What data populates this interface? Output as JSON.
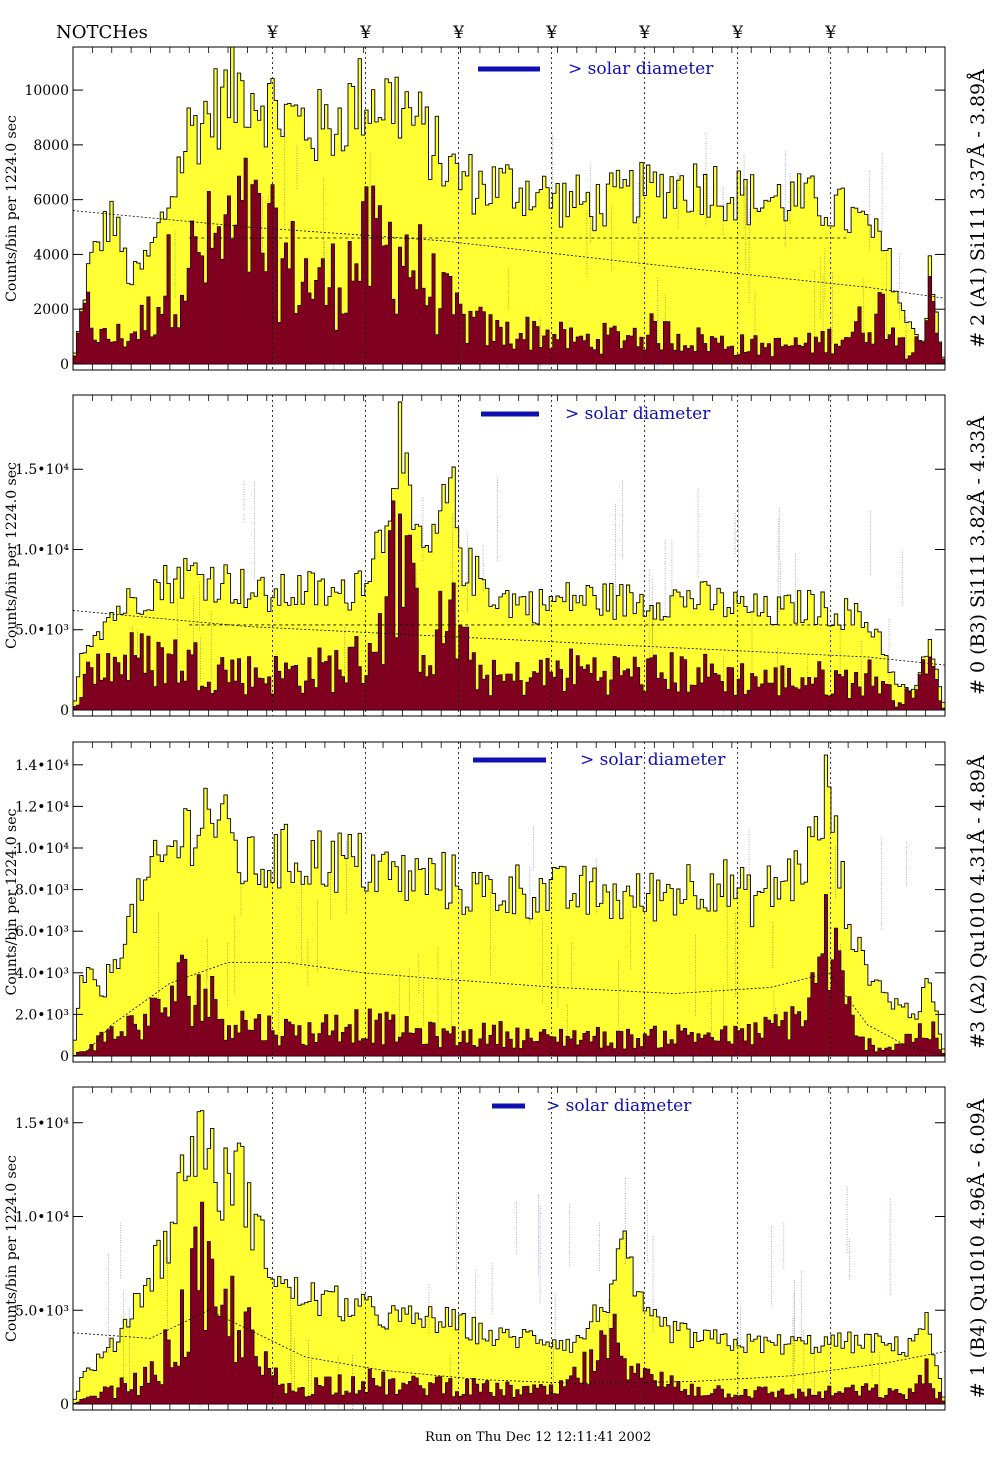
{
  "header": {
    "notches_label": "NOTCHes",
    "notch_symbol": "¥"
  },
  "notch_positions": [
    1.13,
    1.61,
    2.09,
    2.57,
    3.05,
    3.53,
    4.01
  ],
  "footer_text": "Run on Thu Dec 12 12:11:41 2002",
  "colors": {
    "total_fill": "#ffff33",
    "sub_fill": "#800020",
    "legend": "#1010b0",
    "line_label_blue": "#1010b0",
    "line_label_purple": "#800080"
  },
  "chart_data": [
    {
      "type": "area",
      "panel_label": "# 2 (A1) Si111  3.37Å - 3.89Å",
      "ylabel": "Counts/bin per   1224.0 sec",
      "legend_text": "> solar diameter",
      "xlim": [
        0.1,
        4.6
      ],
      "ylim": [
        0,
        11500
      ],
      "yticks": [
        0,
        2000,
        4000,
        6000,
        8000,
        10000
      ],
      "ytick_labels": [
        "0",
        "2000",
        "4000",
        "6000",
        "8000",
        "10000"
      ],
      "baseline_level": 4600,
      "smooth_curve": [
        [
          0.1,
          5600
        ],
        [
          1.0,
          5000
        ],
        [
          2.0,
          4500
        ],
        [
          3.0,
          3700
        ],
        [
          4.2,
          2800
        ],
        [
          4.6,
          2400
        ]
      ],
      "total_profile": [
        [
          0.1,
          0
        ],
        [
          0.18,
          3500
        ],
        [
          0.3,
          5500
        ],
        [
          0.4,
          3000
        ],
        [
          0.5,
          4000
        ],
        [
          0.6,
          6000
        ],
        [
          0.7,
          8500
        ],
        [
          0.85,
          9500
        ],
        [
          1.0,
          10200
        ],
        [
          1.2,
          9000
        ],
        [
          1.4,
          8500
        ],
        [
          1.6,
          9800
        ],
        [
          1.8,
          9500
        ],
        [
          1.95,
          8000
        ],
        [
          2.05,
          7000
        ],
        [
          2.2,
          6500
        ],
        [
          2.4,
          6500
        ],
        [
          2.6,
          6000
        ],
        [
          2.8,
          5800
        ],
        [
          3.0,
          6200
        ],
        [
          3.2,
          6500
        ],
        [
          3.4,
          6500
        ],
        [
          3.6,
          6000
        ],
        [
          3.8,
          6000
        ],
        [
          4.0,
          5800
        ],
        [
          4.2,
          5000
        ],
        [
          4.3,
          4000
        ],
        [
          4.4,
          1500
        ],
        [
          4.5,
          800
        ],
        [
          4.52,
          4200
        ],
        [
          4.58,
          500
        ],
        [
          4.6,
          0
        ]
      ],
      "sub_profile": [
        [
          0.1,
          0
        ],
        [
          0.15,
          2500
        ],
        [
          0.25,
          1000
        ],
        [
          0.4,
          1200
        ],
        [
          0.5,
          2000
        ],
        [
          0.6,
          3500
        ],
        [
          0.8,
          4500
        ],
        [
          1.0,
          5500
        ],
        [
          1.2,
          4000
        ],
        [
          1.4,
          3000
        ],
        [
          1.6,
          4500
        ],
        [
          1.8,
          4800
        ],
        [
          1.95,
          3000
        ],
        [
          2.1,
          1800
        ],
        [
          2.3,
          1200
        ],
        [
          2.5,
          1300
        ],
        [
          2.7,
          900
        ],
        [
          2.9,
          1100
        ],
        [
          3.1,
          1300
        ],
        [
          3.3,
          1000
        ],
        [
          3.5,
          800
        ],
        [
          3.7,
          700
        ],
        [
          3.9,
          800
        ],
        [
          4.1,
          1200
        ],
        [
          4.3,
          2300
        ],
        [
          4.4,
          500
        ],
        [
          4.52,
          2500
        ],
        [
          4.6,
          0
        ]
      ]
    },
    {
      "type": "area",
      "panel_label": "# 0 (B3) Si111  3.82Å - 4.33Å",
      "ylabel": "Counts/bin per   1224.0 sec",
      "legend_text": "> solar diameter",
      "xlim": [
        0.1,
        4.6
      ],
      "ylim": [
        0,
        19500
      ],
      "yticks": [
        0,
        5000,
        10000,
        15000
      ],
      "ytick_labels": [
        "0",
        "5.0•10³",
        "1.0•10⁴",
        "1.5•10⁴"
      ],
      "baseline_level": 5300,
      "smooth_curve": [
        [
          0.1,
          6200
        ],
        [
          1.0,
          5200
        ],
        [
          2.0,
          4600
        ],
        [
          3.0,
          4000
        ],
        [
          4.2,
          3300
        ],
        [
          4.6,
          2800
        ]
      ],
      "total_profile": [
        [
          0.1,
          0
        ],
        [
          0.15,
          4000
        ],
        [
          0.3,
          6000
        ],
        [
          0.5,
          7500
        ],
        [
          0.7,
          8500
        ],
        [
          0.9,
          8000
        ],
        [
          1.1,
          7000
        ],
        [
          1.3,
          7500
        ],
        [
          1.5,
          7000
        ],
        [
          1.62,
          9000
        ],
        [
          1.7,
          11000
        ],
        [
          1.78,
          17500
        ],
        [
          1.85,
          11000
        ],
        [
          1.95,
          9500
        ],
        [
          2.05,
          14000
        ],
        [
          2.12,
          9000
        ],
        [
          2.3,
          7000
        ],
        [
          2.5,
          6500
        ],
        [
          2.7,
          7000
        ],
        [
          2.9,
          6800
        ],
        [
          3.1,
          6800
        ],
        [
          3.3,
          7000
        ],
        [
          3.5,
          6500
        ],
        [
          3.7,
          6000
        ],
        [
          3.9,
          6500
        ],
        [
          4.1,
          6000
        ],
        [
          4.25,
          5000
        ],
        [
          4.35,
          1500
        ],
        [
          4.45,
          1200
        ],
        [
          4.52,
          4500
        ],
        [
          4.6,
          0
        ]
      ],
      "sub_profile": [
        [
          0.1,
          0
        ],
        [
          0.2,
          3000
        ],
        [
          0.4,
          3500
        ],
        [
          0.6,
          3500
        ],
        [
          0.8,
          3000
        ],
        [
          1.0,
          2500
        ],
        [
          1.2,
          2500
        ],
        [
          1.4,
          2800
        ],
        [
          1.6,
          3500
        ],
        [
          1.7,
          6500
        ],
        [
          1.78,
          12000
        ],
        [
          1.85,
          7000
        ],
        [
          1.95,
          4000
        ],
        [
          2.05,
          7000
        ],
        [
          2.15,
          3000
        ],
        [
          2.3,
          2000
        ],
        [
          2.5,
          2400
        ],
        [
          2.7,
          2800
        ],
        [
          2.9,
          2600
        ],
        [
          3.1,
          2500
        ],
        [
          3.3,
          2600
        ],
        [
          3.5,
          2300
        ],
        [
          3.7,
          2000
        ],
        [
          3.9,
          2200
        ],
        [
          4.1,
          2000
        ],
        [
          4.25,
          2400
        ],
        [
          4.35,
          500
        ],
        [
          4.52,
          3000
        ],
        [
          4.6,
          0
        ]
      ]
    },
    {
      "type": "area",
      "panel_label": "#3 (A2) Qu1010  4.31Å - 4.89Å",
      "ylabel": "Counts/bin per   1224.0 sec",
      "legend_text": "> solar diameter",
      "xlim": [
        0.1,
        4.6
      ],
      "ylim": [
        0,
        15000
      ],
      "yticks": [
        0,
        2000,
        4000,
        6000,
        8000,
        10000,
        12000,
        14000
      ],
      "ytick_labels": [
        "0",
        "2.0•10³",
        "4.0•10³",
        "6.0•10³",
        "8.0•10³",
        "1.0•10⁴",
        "1.2•10⁴",
        "1.4•10⁴"
      ],
      "baseline_level": null,
      "smooth_curve": [
        [
          0.15,
          0
        ],
        [
          0.3,
          1500
        ],
        [
          0.6,
          3500
        ],
        [
          0.9,
          4500
        ],
        [
          1.2,
          4500
        ],
        [
          1.6,
          4000
        ],
        [
          2.0,
          3700
        ],
        [
          2.6,
          3300
        ],
        [
          3.2,
          3000
        ],
        [
          3.7,
          3300
        ],
        [
          4.0,
          4000
        ],
        [
          4.2,
          1500
        ],
        [
          4.4,
          500
        ],
        [
          4.6,
          0
        ]
      ],
      "total_profile": [
        [
          0.1,
          0
        ],
        [
          0.15,
          4000
        ],
        [
          0.25,
          3000
        ],
        [
          0.35,
          5500
        ],
        [
          0.5,
          8500
        ],
        [
          0.7,
          11000
        ],
        [
          0.8,
          12000
        ],
        [
          0.9,
          10500
        ],
        [
          1.0,
          9000
        ],
        [
          1.2,
          9500
        ],
        [
          1.4,
          9500
        ],
        [
          1.6,
          9200
        ],
        [
          1.8,
          8500
        ],
        [
          2.0,
          8500
        ],
        [
          2.2,
          7800
        ],
        [
          2.4,
          8000
        ],
        [
          2.6,
          7800
        ],
        [
          2.8,
          7800
        ],
        [
          3.0,
          7500
        ],
        [
          3.2,
          8000
        ],
        [
          3.4,
          8500
        ],
        [
          3.6,
          7500
        ],
        [
          3.8,
          8500
        ],
        [
          3.95,
          10500
        ],
        [
          4.0,
          13500
        ],
        [
          4.05,
          9000
        ],
        [
          4.15,
          5000
        ],
        [
          4.3,
          2800
        ],
        [
          4.45,
          2000
        ],
        [
          4.52,
          3500
        ],
        [
          4.6,
          0
        ]
      ],
      "sub_profile": [
        [
          0.1,
          0
        ],
        [
          0.3,
          1200
        ],
        [
          0.5,
          2000
        ],
        [
          0.7,
          4000
        ],
        [
          0.9,
          2000
        ],
        [
          1.1,
          1500
        ],
        [
          1.3,
          1200
        ],
        [
          1.5,
          1800
        ],
        [
          1.7,
          1500
        ],
        [
          1.9,
          1200
        ],
        [
          2.1,
          1000
        ],
        [
          2.3,
          1200
        ],
        [
          2.5,
          900
        ],
        [
          2.7,
          1100
        ],
        [
          2.9,
          900
        ],
        [
          3.1,
          1000
        ],
        [
          3.3,
          1200
        ],
        [
          3.5,
          1000
        ],
        [
          3.7,
          1400
        ],
        [
          3.9,
          2500
        ],
        [
          4.0,
          7000
        ],
        [
          4.05,
          4000
        ],
        [
          4.15,
          800
        ],
        [
          4.3,
          400
        ],
        [
          4.52,
          1500
        ],
        [
          4.6,
          0
        ]
      ]
    },
    {
      "type": "area",
      "panel_label": "# 1 (B4) Qu1010 4.96Å - 6.09Å",
      "ylabel": "Counts/bin per   1224.0 sec",
      "legend_text": "> solar diameter",
      "xlim": [
        0.1,
        4.6
      ],
      "ylim": [
        0,
        16800
      ],
      "yticks": [
        0,
        5000,
        10000,
        15000
      ],
      "ytick_labels": [
        "0",
        "5.0•10³",
        "1.0•10⁴",
        "1.5•10⁴"
      ],
      "baseline_level": null,
      "smooth_curve": [
        [
          0.1,
          3800
        ],
        [
          0.5,
          3500
        ],
        [
          0.8,
          5000
        ],
        [
          1.0,
          4000
        ],
        [
          1.3,
          2500
        ],
        [
          1.7,
          1800
        ],
        [
          2.2,
          1300
        ],
        [
          2.7,
          1100
        ],
        [
          3.3,
          1200
        ],
        [
          3.8,
          1500
        ],
        [
          4.3,
          2200
        ],
        [
          4.6,
          2800
        ]
      ],
      "total_profile": [
        [
          0.1,
          0
        ],
        [
          0.15,
          1500
        ],
        [
          0.3,
          3000
        ],
        [
          0.45,
          6000
        ],
        [
          0.6,
          9000
        ],
        [
          0.7,
          13500
        ],
        [
          0.78,
          15000
        ],
        [
          0.85,
          11000
        ],
        [
          0.95,
          13000
        ],
        [
          1.05,
          9000
        ],
        [
          1.2,
          6000
        ],
        [
          1.4,
          5500
        ],
        [
          1.6,
          5000
        ],
        [
          1.8,
          4500
        ],
        [
          2.0,
          4500
        ],
        [
          2.1,
          4200
        ],
        [
          2.3,
          3500
        ],
        [
          2.5,
          3600
        ],
        [
          2.7,
          3200
        ],
        [
          2.85,
          5500
        ],
        [
          2.95,
          8000
        ],
        [
          3.05,
          4500
        ],
        [
          3.3,
          3500
        ],
        [
          3.6,
          3200
        ],
        [
          3.9,
          3200
        ],
        [
          4.2,
          3300
        ],
        [
          4.4,
          3000
        ],
        [
          4.5,
          4500
        ],
        [
          4.6,
          0
        ]
      ],
      "sub_profile": [
        [
          0.1,
          0
        ],
        [
          0.3,
          800
        ],
        [
          0.5,
          1500
        ],
        [
          0.65,
          4000
        ],
        [
          0.75,
          8000
        ],
        [
          0.85,
          4500
        ],
        [
          0.95,
          5500
        ],
        [
          1.05,
          2500
        ],
        [
          1.2,
          800
        ],
        [
          1.4,
          1200
        ],
        [
          1.6,
          1400
        ],
        [
          1.8,
          1000
        ],
        [
          2.0,
          1200
        ],
        [
          2.2,
          900
        ],
        [
          2.4,
          800
        ],
        [
          2.6,
          700
        ],
        [
          2.8,
          2500
        ],
        [
          2.95,
          4000
        ],
        [
          3.05,
          1500
        ],
        [
          3.3,
          900
        ],
        [
          3.6,
          700
        ],
        [
          3.9,
          600
        ],
        [
          4.2,
          800
        ],
        [
          4.4,
          500
        ],
        [
          4.5,
          1800
        ],
        [
          4.6,
          0
        ]
      ]
    }
  ]
}
